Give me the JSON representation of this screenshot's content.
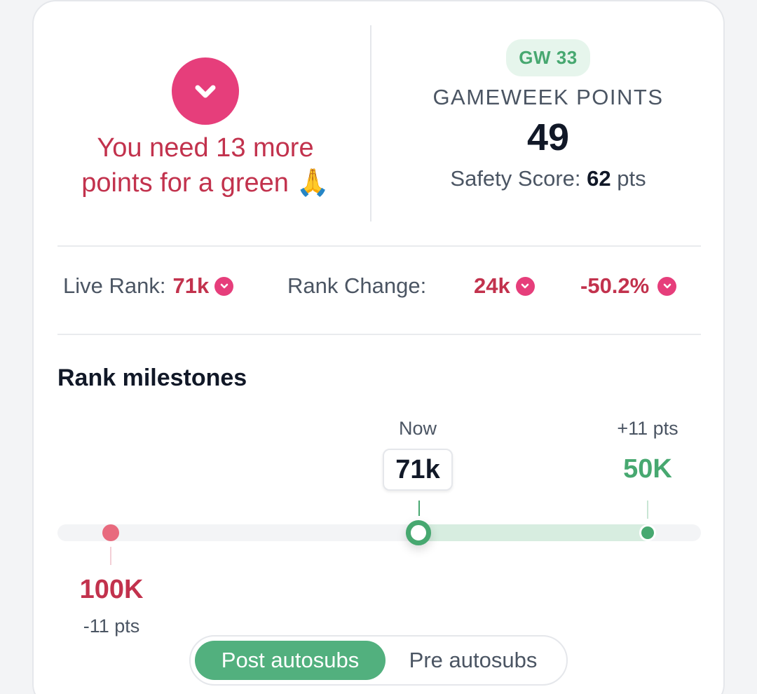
{
  "status": {
    "icon": "chevron-down-icon",
    "message": "You need 13 more points for a green 🙏"
  },
  "gameweek": {
    "badge": "GW 33",
    "label": "GAMEWEEK POINTS",
    "points": "49",
    "safety_label": "Safety Score:",
    "safety_value": "62",
    "safety_unit": "pts"
  },
  "rank": {
    "live_label": "Live Rank:",
    "live_value": "71k",
    "change_label": "Rank Change:",
    "change_value": "24k",
    "change_percent": "-50.2%"
  },
  "milestones": {
    "title": "Rank milestones",
    "current_label": "Now",
    "current_rank": "71k",
    "up_points": "+11 pts",
    "up_rank": "50K",
    "down_rank": "100K",
    "down_points": "-11 pts"
  },
  "toggle": {
    "active": "Post autosubs",
    "inactive": "Pre autosubs"
  },
  "colors": {
    "red": "#c2324d",
    "pink": "#e63e7b",
    "green": "#47a870"
  }
}
